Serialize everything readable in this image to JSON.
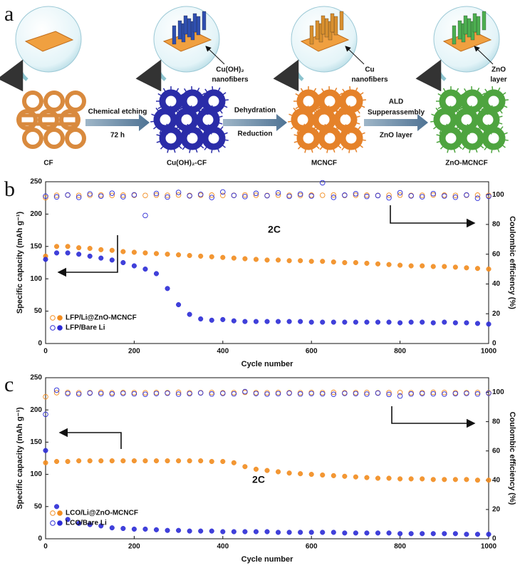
{
  "diagram": {
    "panel_label": "a",
    "stages": [
      {
        "label": "CF"
      },
      {
        "label": "Cu(OH)₂-CF"
      },
      {
        "label": "MCNCF"
      },
      {
        "label": "ZnO-MCNCF"
      }
    ],
    "steps": [
      {
        "lines": [
          "Chemical etching",
          "72 h"
        ]
      },
      {
        "lines": [
          "Dehydration",
          "Reduction"
        ]
      },
      {
        "lines": [
          "ALD",
          "Supperassembly",
          "ZnO layer"
        ]
      }
    ],
    "callouts": [
      {
        "lines": [
          "Cu(OH)₂",
          "nanofibers"
        ]
      },
      {
        "lines": [
          "Cu",
          "nanofibers"
        ]
      },
      {
        "lines": [
          "ZnO",
          "layer"
        ]
      }
    ]
  },
  "chart_data": [
    {
      "type": "scatter",
      "panel_label": "b",
      "annotation": "2C",
      "x_label": "Cycle number",
      "y_label": "Specific capacity (mAh g⁻¹)",
      "y2_label": "Coulombic efficiency (%)",
      "xlim": [
        0,
        1000
      ],
      "xticks": [
        0,
        200,
        400,
        600,
        800,
        1000
      ],
      "ylim": [
        0,
        250
      ],
      "yticks": [
        0,
        50,
        100,
        150,
        200,
        250
      ],
      "y2lim": [
        0,
        108.7
      ],
      "y2ticks": [
        0,
        20,
        40,
        60,
        80,
        100
      ],
      "legend": "lower left",
      "x": [
        0,
        25,
        50,
        75,
        100,
        125,
        150,
        175,
        200,
        225,
        250,
        275,
        300,
        325,
        350,
        375,
        400,
        425,
        450,
        475,
        500,
        525,
        550,
        575,
        600,
        625,
        650,
        675,
        700,
        725,
        750,
        775,
        800,
        825,
        850,
        875,
        900,
        925,
        950,
        975,
        1000
      ],
      "series": [
        {
          "name": "LFP/Li@ZnO-MCNCF",
          "color": "#f28c1e",
          "values": [
            135,
            150,
            150,
            148,
            147,
            145,
            144,
            142,
            141,
            140,
            139,
            138,
            137,
            136,
            135,
            134,
            133,
            132,
            131,
            130,
            129,
            129,
            128,
            128,
            127,
            127,
            126,
            125,
            125,
            124,
            123,
            122,
            121,
            120,
            120,
            119,
            119,
            118,
            117,
            116,
            115
          ]
        },
        {
          "name": "LFP/Bare Li",
          "color": "#2b2bd6",
          "values": [
            130,
            140,
            140,
            138,
            135,
            132,
            129,
            125,
            120,
            115,
            108,
            85,
            60,
            45,
            38,
            36,
            37,
            35,
            34,
            34,
            34,
            34,
            34,
            34,
            33,
            33,
            33,
            33,
            33,
            33,
            33,
            33,
            32,
            33,
            33,
            32,
            33,
            32,
            32,
            31,
            30
          ]
        },
        {
          "axis": "y2",
          "color": "#f28c1e",
          "hollow": true,
          "values": [
            98,
            99.6,
            99.7,
            99.5,
            99.6,
            99.8,
            99.5,
            99.7,
            99.6,
            99.5,
            99.7,
            99.6,
            99.8,
            99.5,
            99.6,
            99.7,
            99.5,
            99.6,
            99.8,
            99.6,
            99.5,
            99.7,
            99.6,
            99.5,
            99.7,
            99.6,
            99.8,
            99.5,
            99.6,
            99.7,
            99.5,
            99.6,
            99.7,
            99.5,
            99.6,
            99.8,
            99.7,
            99.5,
            99.6,
            99.7,
            99.5
          ]
        },
        {
          "axis": "y2",
          "color": "#2b2bd6",
          "hollow": true,
          "values": [
            99,
            98.5,
            99.8,
            98.2,
            100.5,
            99,
            101,
            98.6,
            99.9,
            86,
            100.8,
            98.4,
            101.5,
            99.2,
            100.2,
            98.1,
            101.8,
            99.5,
            98.7,
            100.9,
            99.3,
            101.2,
            98.9,
            100.4,
            99.1,
            108,
            98.2,
            99.7,
            100.6,
            98.8,
            99.4,
            97.9,
            101.3,
            99.2,
            98.6,
            100.7,
            99.1,
            98.3,
            99.8,
            97.6,
            98.9
          ]
        }
      ]
    },
    {
      "type": "scatter",
      "panel_label": "c",
      "annotation": "2C",
      "x_label": "Cycle number",
      "y_label": "Specific capacity (mAh g⁻¹)",
      "y2_label": "Coulombic efficiency (%)",
      "xlim": [
        0,
        1000
      ],
      "xticks": [
        0,
        200,
        400,
        600,
        800,
        1000
      ],
      "ylim": [
        0,
        250
      ],
      "yticks": [
        0,
        50,
        100,
        150,
        200,
        250
      ],
      "y2lim": [
        0,
        110
      ],
      "y2ticks": [
        0,
        20,
        40,
        60,
        80,
        100
      ],
      "legend": "lower left",
      "x": [
        0,
        25,
        50,
        75,
        100,
        125,
        150,
        175,
        200,
        225,
        250,
        275,
        300,
        325,
        350,
        375,
        400,
        425,
        450,
        475,
        500,
        525,
        550,
        575,
        600,
        625,
        650,
        675,
        700,
        725,
        750,
        775,
        800,
        825,
        850,
        875,
        900,
        925,
        950,
        975,
        1000
      ],
      "series": [
        {
          "name": "LCO/Li@ZnO-MCNCF",
          "color": "#f28c1e",
          "values": [
            118,
            120,
            120,
            121,
            121,
            121,
            121,
            121,
            121,
            121,
            121,
            121,
            121,
            121,
            121,
            120,
            120,
            118,
            112,
            108,
            106,
            104,
            102,
            101,
            100,
            99,
            98,
            97,
            96,
            95,
            94,
            94,
            93,
            93,
            93,
            92,
            92,
            92,
            92,
            91,
            91
          ]
        },
        {
          "name": "LCO/Bare Li",
          "color": "#2b2bd6",
          "values": [
            137,
            50,
            30,
            24,
            22,
            20,
            17,
            16,
            15,
            15,
            14,
            13,
            13,
            12,
            12,
            12,
            11,
            11,
            11,
            11,
            11,
            10,
            10,
            10,
            10,
            10,
            10,
            9,
            9,
            9,
            9,
            9,
            8,
            8,
            8,
            8,
            8,
            8,
            7,
            7,
            7
          ]
        },
        {
          "axis": "y2",
          "color": "#f28c1e",
          "hollow": true,
          "values": [
            97,
            99.8,
            99.9,
            99.7,
            99.8,
            100,
            99.7,
            99.9,
            99.8,
            99.7,
            99.9,
            99.8,
            100,
            99.7,
            99.8,
            99.9,
            99.7,
            99.8,
            100,
            99.8,
            99.7,
            99.9,
            99.8,
            99.7,
            99.9,
            99.8,
            100,
            99.7,
            99.8,
            99.9,
            99.7,
            99.8,
            99.9,
            99.7,
            99.8,
            100,
            99.9,
            99.7,
            99.8,
            99.9,
            99.7
          ]
        },
        {
          "axis": "y2",
          "color": "#2b2bd6",
          "hollow": true,
          "values": [
            85,
            101.5,
            99.2,
            98.8,
            99.5,
            99.1,
            98.9,
            99.3,
            99,
            98.7,
            99.2,
            99.4,
            98.8,
            99.1,
            99.6,
            98.9,
            99.3,
            99,
            100.5,
            99.2,
            98.8,
            99.1,
            99.4,
            98.9,
            99.2,
            99,
            98.7,
            99.3,
            99.1,
            98.8,
            99.5,
            98.6,
            97.5,
            98.9,
            99.2,
            99,
            98.8,
            99.1,
            99.3,
            98.9,
            99.4
          ]
        }
      ]
    }
  ]
}
